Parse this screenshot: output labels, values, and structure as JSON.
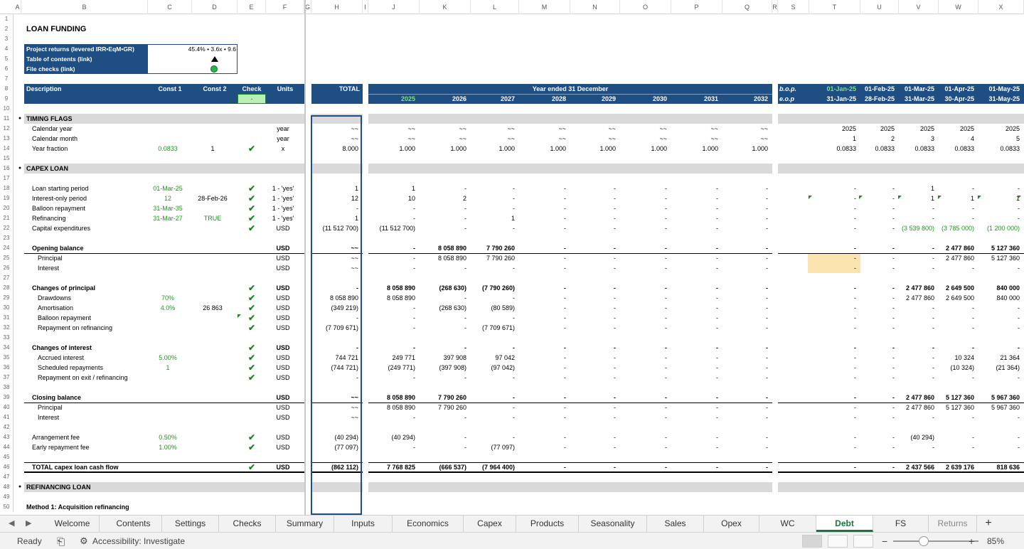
{
  "columns": [
    "A",
    "B",
    "C",
    "D",
    "E",
    "F",
    "G",
    "H",
    "I",
    "J",
    "K",
    "L",
    "M",
    "N",
    "O",
    "P",
    "Q",
    "R",
    "S",
    "T",
    "U",
    "V",
    "W",
    "X"
  ],
  "rows": [
    "1",
    "2",
    "3",
    "4",
    "5",
    "6",
    "7",
    "8",
    "9",
    "10",
    "11",
    "12",
    "13",
    "14",
    "15",
    "16",
    "17",
    "18",
    "19",
    "20",
    "21",
    "22",
    "23",
    "24",
    "25",
    "26",
    "27",
    "28",
    "29",
    "30",
    "31",
    "32",
    "33",
    "34",
    "35",
    "36",
    "37",
    "38",
    "39",
    "40",
    "41",
    "42",
    "43",
    "44",
    "45",
    "46",
    "47",
    "48",
    "49",
    "50"
  ],
  "sheet": {
    "title": "LOAN FUNDING",
    "summary": {
      "project_returns_label": "Project returns (levered IRR•EqM•GR)",
      "project_returns_value": "45.4% • 3.6x • 9.6",
      "toc_label": "Table of contents (link)",
      "file_checks_label": "File checks (link)"
    },
    "header": {
      "description": "Description",
      "const1": "Const 1",
      "const2": "Const 2",
      "check": "Check",
      "units": "Units",
      "total": "TOTAL",
      "year_ended": "Year ended 31 December",
      "check_value": "-",
      "years": [
        "2025",
        "2026",
        "2027",
        "2028",
        "2029",
        "2030",
        "2031",
        "2032"
      ],
      "bop": "b.o.p.",
      "eop": "e.o.p",
      "bop_dates": [
        "01-Jan-25",
        "01-Feb-25",
        "01-Mar-25",
        "01-Apr-25",
        "01-May-25"
      ],
      "eop_dates": [
        "31-Jan-25",
        "28-Feb-25",
        "31-Mar-25",
        "30-Apr-25",
        "31-May-25"
      ]
    },
    "lines": [
      {
        "row": 11,
        "type": "section",
        "label": "TIMING FLAGS"
      },
      {
        "row": 12,
        "label": "Calendar year",
        "c1": "",
        "c2": "",
        "check": false,
        "units": "year",
        "total": "~~",
        "years": [
          "~~",
          "~~",
          "~~",
          "~~",
          "~~",
          "~~",
          "~~",
          "~~"
        ],
        "months": [
          "2025",
          "2025",
          "2025",
          "2025",
          "2025"
        ]
      },
      {
        "row": 13,
        "label": "Calendar month",
        "c1": "",
        "c2": "",
        "check": false,
        "units": "year",
        "total": "~~",
        "years": [
          "~~",
          "~~",
          "~~",
          "~~",
          "~~",
          "~~",
          "~~",
          "~~"
        ],
        "months": [
          "1",
          "2",
          "3",
          "4",
          "5"
        ]
      },
      {
        "row": 14,
        "label": "Year fraction",
        "c1": "0.0833",
        "c2": "1",
        "check": true,
        "units": "x",
        "total": "8.000",
        "years": [
          "1.000",
          "1.000",
          "1.000",
          "1.000",
          "1.000",
          "1.000",
          "1.000",
          "1.000"
        ],
        "months": [
          "0.0833",
          "0.0833",
          "0.0833",
          "0.0833",
          "0.0833"
        ]
      },
      {
        "row": 16,
        "type": "section",
        "label": "CAPEX LOAN"
      },
      {
        "row": 18,
        "label": "Loan starting period",
        "c1": "01-Mar-25",
        "c2": "",
        "check": true,
        "units": "1 - 'yes'",
        "total": "1",
        "years": [
          "1",
          "-",
          "-",
          "-",
          "-",
          "-",
          "-",
          "-"
        ],
        "months": [
          "-",
          "-",
          "1",
          "-",
          "-"
        ]
      },
      {
        "row": 19,
        "label": "Interest-only period",
        "c1": "12",
        "c2": "28-Feb-26",
        "check": true,
        "units": "1 - 'yes'",
        "total": "12",
        "years": [
          "10",
          "2",
          "-",
          "-",
          "-",
          "-",
          "-",
          "-"
        ],
        "months": [
          "-",
          "-",
          "1",
          "1",
          "1"
        ]
      },
      {
        "row": 20,
        "label": "Balloon repayment",
        "c1": "31-Mar-35",
        "c2": "",
        "check": true,
        "units": "1 - 'yes'",
        "total": "-",
        "years": [
          "-",
          "-",
          "-",
          "-",
          "-",
          "-",
          "-",
          "-"
        ],
        "months": [
          "-",
          "-",
          "-",
          "-",
          "-"
        ]
      },
      {
        "row": 21,
        "label": "Refinancing",
        "c1": "31-Mar-27",
        "c2": "TRUE",
        "check": true,
        "units": "1 - 'yes'",
        "total": "1",
        "years": [
          "-",
          "-",
          "1",
          "-",
          "-",
          "-",
          "-",
          "-"
        ],
        "months": [
          "-",
          "-",
          "-",
          "-",
          "-"
        ]
      },
      {
        "row": 22,
        "label": "Capital expenditures",
        "c1": "",
        "c2": "",
        "check": true,
        "units": "USD",
        "total": "(11 512 700)",
        "years": [
          "(11 512 700)",
          "-",
          "-",
          "-",
          "-",
          "-",
          "-",
          "-"
        ],
        "months": [
          "-",
          "-",
          "(3 539 800)",
          "(3 785 000)",
          "(1 200 000)"
        ],
        "green_months": true
      },
      {
        "row": 24,
        "label": "Opening balance",
        "bold": true,
        "c1": "",
        "c2": "",
        "check": false,
        "units": "USD",
        "total": "~~",
        "years": [
          "-",
          "8 058 890",
          "7 790 260",
          "-",
          "-",
          "-",
          "-",
          "-"
        ],
        "months": [
          "-",
          "-",
          "-",
          "2 477 860",
          "5 127 360"
        ]
      },
      {
        "row": 25,
        "label": "Principal",
        "indent": true,
        "c1": "",
        "c2": "",
        "check": false,
        "units": "USD",
        "total": "~~",
        "years": [
          "-",
          "8 058 890",
          "7 790 260",
          "-",
          "-",
          "-",
          "-",
          "-"
        ],
        "months": [
          "-",
          "-",
          "-",
          "2 477 860",
          "5 127 360"
        ]
      },
      {
        "row": 26,
        "label": "Interest",
        "indent": true,
        "c1": "",
        "c2": "",
        "check": false,
        "units": "USD",
        "total": "~~",
        "years": [
          "-",
          "-",
          "-",
          "-",
          "-",
          "-",
          "-",
          "-"
        ],
        "months": [
          "-",
          "-",
          "-",
          "-",
          "-"
        ]
      },
      {
        "row": 28,
        "label": "Changes of principal",
        "bold": true,
        "c1": "",
        "c2": "",
        "check": true,
        "units": "USD",
        "total": "-",
        "years": [
          "8 058 890",
          "(268 630)",
          "(7 790 260)",
          "-",
          "-",
          "-",
          "-",
          "-"
        ],
        "months": [
          "-",
          "-",
          "2 477 860",
          "2 649 500",
          "840 000"
        ]
      },
      {
        "row": 29,
        "label": "Drawdowns",
        "indent": true,
        "c1": "70%",
        "c2": "",
        "check": true,
        "units": "USD",
        "total": "8 058 890",
        "years": [
          "8 058 890",
          "-",
          "-",
          "-",
          "-",
          "-",
          "-",
          "-"
        ],
        "months": [
          "-",
          "-",
          "2 477 860",
          "2 649 500",
          "840 000"
        ]
      },
      {
        "row": 30,
        "label": "Amortisation",
        "indent": true,
        "c1": "4.0%",
        "c2": "26 863",
        "check": true,
        "units": "USD",
        "total": "(349 219)",
        "years": [
          "-",
          "(268 630)",
          "(80 589)",
          "-",
          "-",
          "-",
          "-",
          "-"
        ],
        "months": [
          "-",
          "-",
          "-",
          "-",
          "-"
        ]
      },
      {
        "row": 31,
        "label": "Balloon repayment",
        "indent": true,
        "c1": "",
        "c2": "",
        "check": true,
        "units": "USD",
        "total": "-",
        "years": [
          "-",
          "-",
          "-",
          "-",
          "-",
          "-",
          "-",
          "-"
        ],
        "months": [
          "-",
          "-",
          "-",
          "-",
          "-"
        ]
      },
      {
        "row": 32,
        "label": "Repayment on refinancing",
        "indent": true,
        "c1": "",
        "c2": "",
        "check": true,
        "units": "USD",
        "total": "(7 709 671)",
        "years": [
          "-",
          "-",
          "(7 709 671)",
          "-",
          "-",
          "-",
          "-",
          "-"
        ],
        "months": [
          "-",
          "-",
          "-",
          "-",
          "-"
        ]
      },
      {
        "row": 34,
        "label": "Changes of interest",
        "bold": true,
        "c1": "",
        "c2": "",
        "check": true,
        "units": "USD",
        "total": "-",
        "years": [
          "-",
          "-",
          "-",
          "-",
          "-",
          "-",
          "-",
          "-"
        ],
        "months": [
          "-",
          "-",
          "-",
          "-",
          "-"
        ]
      },
      {
        "row": 35,
        "label": "Accrued interest",
        "indent": true,
        "c1": "5.00%",
        "c2": "",
        "check": true,
        "units": "USD",
        "total": "744 721",
        "years": [
          "249 771",
          "397 908",
          "97 042",
          "-",
          "-",
          "-",
          "-",
          "-"
        ],
        "months": [
          "-",
          "-",
          "-",
          "10 324",
          "21 364"
        ]
      },
      {
        "row": 36,
        "label": "Scheduled repayments",
        "indent": true,
        "c1": "1",
        "c2": "",
        "check": true,
        "units": "USD",
        "total": "(744 721)",
        "years": [
          "(249 771)",
          "(397 908)",
          "(97 042)",
          "-",
          "-",
          "-",
          "-",
          "-"
        ],
        "months": [
          "-",
          "-",
          "-",
          "(10 324)",
          "(21 364)"
        ]
      },
      {
        "row": 37,
        "label": "Repayment on exit / refinancing",
        "indent": true,
        "c1": "",
        "c2": "",
        "check": true,
        "units": "USD",
        "total": "-",
        "years": [
          "-",
          "-",
          "-",
          "-",
          "-",
          "-",
          "-",
          "-"
        ],
        "months": [
          "-",
          "-",
          "-",
          "-",
          "-"
        ]
      },
      {
        "row": 39,
        "label": "Closing balance",
        "bold": true,
        "c1": "",
        "c2": "",
        "check": false,
        "units": "USD",
        "total": "~~",
        "years": [
          "8 058 890",
          "7 790 260",
          "-",
          "-",
          "-",
          "-",
          "-",
          "-"
        ],
        "months": [
          "-",
          "-",
          "2 477 860",
          "5 127 360",
          "5 967 360"
        ]
      },
      {
        "row": 40,
        "label": "Principal",
        "indent": true,
        "c1": "",
        "c2": "",
        "check": false,
        "units": "USD",
        "total": "~~",
        "years": [
          "8 058 890",
          "7 790 260",
          "-",
          "-",
          "-",
          "-",
          "-",
          "-"
        ],
        "months": [
          "-",
          "-",
          "2 477 860",
          "5 127 360",
          "5 967 360"
        ]
      },
      {
        "row": 41,
        "label": "Interest",
        "indent": true,
        "c1": "",
        "c2": "",
        "check": false,
        "units": "USD",
        "total": "~~",
        "years": [
          "-",
          "-",
          "-",
          "-",
          "-",
          "-",
          "-",
          "-"
        ],
        "months": [
          "-",
          "-",
          "-",
          "-",
          "-"
        ]
      },
      {
        "row": 43,
        "label": "Arrangement fee",
        "c1": "0.50%",
        "c2": "",
        "check": true,
        "units": "USD",
        "total": "(40 294)",
        "years": [
          "(40 294)",
          "-",
          "-",
          "-",
          "-",
          "-",
          "-",
          "-"
        ],
        "months": [
          "-",
          "-",
          "(40 294)",
          "-",
          "-"
        ]
      },
      {
        "row": 44,
        "label": "Early repayment fee",
        "c1": "1.00%",
        "c2": "",
        "check": true,
        "units": "USD",
        "total": "(77 097)",
        "years": [
          "-",
          "-",
          "(77 097)",
          "-",
          "-",
          "-",
          "-",
          "-"
        ],
        "months": [
          "-",
          "-",
          "-",
          "-",
          "-"
        ]
      },
      {
        "row": 46,
        "label": "TOTAL capex loan cash flow",
        "bold": true,
        "c1": "",
        "c2": "",
        "check": true,
        "units": "USD",
        "total": "(862 112)",
        "years": [
          "7 768 825",
          "(666 537)",
          "(7 964 400)",
          "-",
          "-",
          "-",
          "-",
          "-"
        ],
        "months": [
          "-",
          "-",
          "2 437 566",
          "2 639 176",
          "818 636"
        ]
      },
      {
        "row": 48,
        "type": "section",
        "label": "REFINANCING LOAN"
      },
      {
        "row": 50,
        "type": "subhead",
        "label": "Method 1: Acquisition refinancing"
      }
    ]
  },
  "tabs": [
    "Welcome",
    "Contents",
    "Settings",
    "Checks",
    "Summary",
    "Inputs",
    "Economics",
    "Capex",
    "Products",
    "Seasonality",
    "Sales",
    "Opex",
    "WC",
    "Debt",
    "FS",
    "Returns"
  ],
  "active_tab": "Debt",
  "add_sheet": "+",
  "status": {
    "ready": "Ready",
    "accessibility": "Accessibility: Investigate",
    "zoom": "85%",
    "zoom_minus": "−",
    "zoom_plus": "+"
  },
  "icons": {
    "prev": "◀",
    "next": "▶",
    "check": "✔",
    "triangle": "▲",
    "bullet": "●"
  },
  "colors": {
    "header_band": "#1f4e82",
    "green_text": "#1a9a1a",
    "section_grey": "#d9d9d9",
    "active_tab": "#1a7340",
    "highlight": "#fce4b0"
  }
}
